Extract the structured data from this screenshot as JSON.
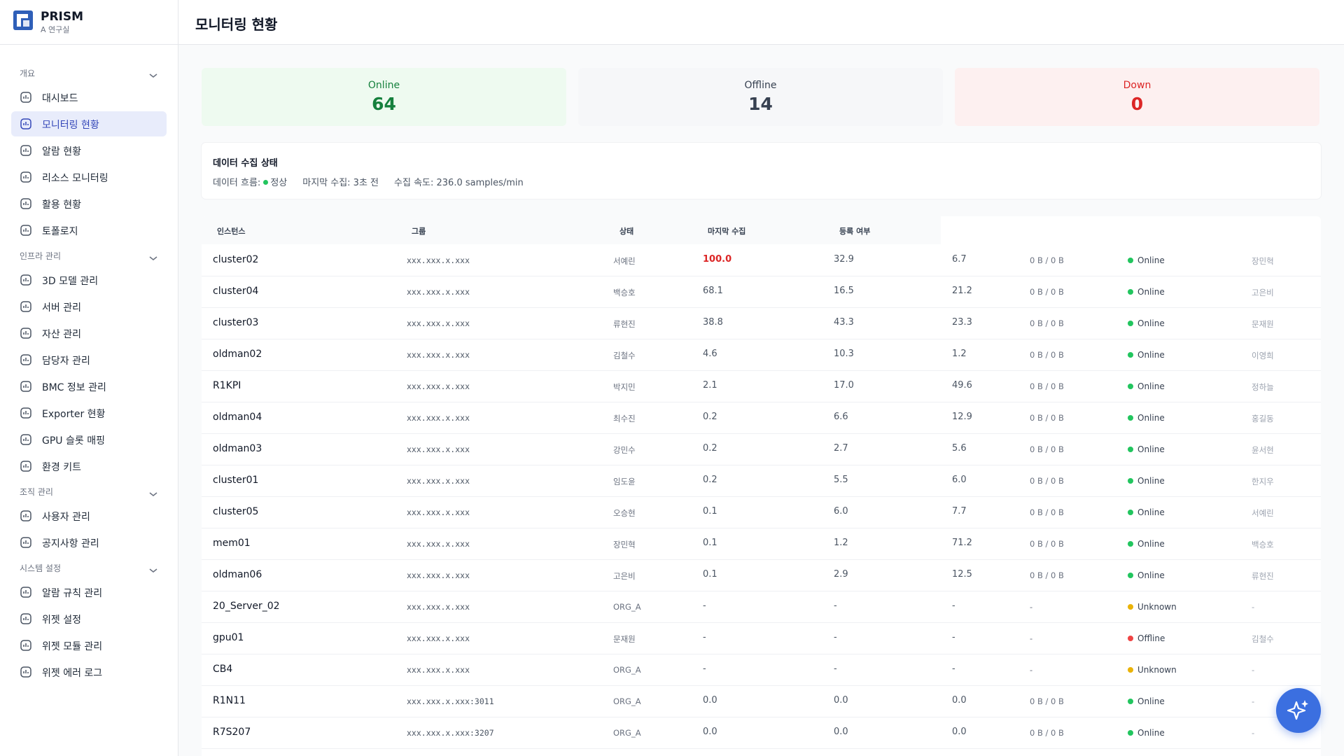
{
  "sidebar": {
    "brand": "PRISM",
    "org": "A 연구실",
    "groups": [
      {
        "label": "개요",
        "items": [
          "대시보드",
          "모니터링 현황",
          "알람 현황",
          "리소스 모니터링",
          "활용 현황",
          "토폴로지"
        ]
      },
      {
        "label": "인프라 관리",
        "items": [
          "3D 모델 관리",
          "서버 관리",
          "자산 관리",
          "담당자 관리",
          "BMC 정보 관리",
          "Exporter 현황",
          "GPU 슬롯 매핑",
          "환경 키트"
        ]
      },
      {
        "label": "조직 관리",
        "items": [
          "사용자 관리",
          "공지사항 관리"
        ]
      },
      {
        "label": "시스템 설정",
        "items": [
          "알람 규칙 관리",
          "위젯 설정",
          "위젯 모듈 관리",
          "위젯 에러 로그"
        ]
      }
    ],
    "active": "모니터링 현황"
  },
  "header": {
    "title": "모니터링 현황"
  },
  "cards": [
    {
      "label": "Online",
      "value": 64,
      "color": "#15803d",
      "background": "#eefaf0"
    },
    {
      "label": "Offline",
      "value": 14,
      "color": "#374151",
      "background": "#f6f7f9"
    },
    {
      "label": "Down",
      "value": 0,
      "color": "#dc2626",
      "background": "#fdf0f0"
    }
  ],
  "collection": {
    "title": "데이터 수집 상태",
    "flow_label": "데이터 흐름:",
    "flow_status": "정상",
    "last": "마지막 수집: 3초 전",
    "rate": "수집 속도: 236.0 samples/min"
  },
  "table": {
    "columns": [
      "인스턴스",
      "그룹",
      "상태",
      "마지막 수집",
      "등록 여부"
    ],
    "alert_color": "#dc2626",
    "rows": [
      {
        "instance": "cluster02",
        "ip": "xxx.xxx.x.xxx",
        "owner": "서예린",
        "cpu": "100.0",
        "mem": "32.9",
        "disk": "6.7",
        "net": "0 B / 0 B",
        "status": "Online",
        "status_color": "#22c55e",
        "manager": "장민혁",
        "alert": true
      },
      {
        "instance": "cluster04",
        "ip": "xxx.xxx.x.xxx",
        "owner": "백승호",
        "cpu": "68.1",
        "mem": "16.5",
        "disk": "21.2",
        "net": "0 B / 0 B",
        "status": "Online",
        "status_color": "#22c55e",
        "manager": "고은비"
      },
      {
        "instance": "cluster03",
        "ip": "xxx.xxx.x.xxx",
        "owner": "류현진",
        "cpu": "38.8",
        "mem": "43.3",
        "disk": "23.3",
        "net": "0 B / 0 B",
        "status": "Online",
        "status_color": "#22c55e",
        "manager": "문재원"
      },
      {
        "instance": "oldman02",
        "ip": "xxx.xxx.x.xxx",
        "owner": "김철수",
        "cpu": "4.6",
        "mem": "10.3",
        "disk": "1.2",
        "net": "0 B / 0 B",
        "status": "Online",
        "status_color": "#22c55e",
        "manager": "이영희"
      },
      {
        "instance": "R1KPI",
        "ip": "xxx.xxx.x.xxx",
        "owner": "박지민",
        "cpu": "2.1",
        "mem": "17.0",
        "disk": "49.6",
        "net": "0 B / 0 B",
        "status": "Online",
        "status_color": "#22c55e",
        "manager": "정하늘"
      },
      {
        "instance": "oldman04",
        "ip": "xxx.xxx.x.xxx",
        "owner": "최수진",
        "cpu": "0.2",
        "mem": "6.6",
        "disk": "12.9",
        "net": "0 B / 0 B",
        "status": "Online",
        "status_color": "#22c55e",
        "manager": "홍길동"
      },
      {
        "instance": "oldman03",
        "ip": "xxx.xxx.x.xxx",
        "owner": "강민수",
        "cpu": "0.2",
        "mem": "2.7",
        "disk": "5.6",
        "net": "0 B / 0 B",
        "status": "Online",
        "status_color": "#22c55e",
        "manager": "윤서현"
      },
      {
        "instance": "cluster01",
        "ip": "xxx.xxx.x.xxx",
        "owner": "임도윤",
        "cpu": "0.2",
        "mem": "5.5",
        "disk": "6.0",
        "net": "0 B / 0 B",
        "status": "Online",
        "status_color": "#22c55e",
        "manager": "한지우"
      },
      {
        "instance": "cluster05",
        "ip": "xxx.xxx.x.xxx",
        "owner": "오승현",
        "cpu": "0.1",
        "mem": "6.0",
        "disk": "7.7",
        "net": "0 B / 0 B",
        "status": "Online",
        "status_color": "#22c55e",
        "manager": "서예린"
      },
      {
        "instance": "mem01",
        "ip": "xxx.xxx.x.xxx",
        "owner": "장민혁",
        "cpu": "0.1",
        "mem": "1.2",
        "disk": "71.2",
        "net": "0 B / 0 B",
        "status": "Online",
        "status_color": "#22c55e",
        "manager": "백승호"
      },
      {
        "instance": "oldman06",
        "ip": "xxx.xxx.x.xxx",
        "owner": "고은비",
        "cpu": "0.1",
        "mem": "2.9",
        "disk": "12.5",
        "net": "0 B / 0 B",
        "status": "Online",
        "status_color": "#22c55e",
        "manager": "류현진"
      },
      {
        "instance": "20_Server_02",
        "ip": "xxx.xxx.x.xxx",
        "owner": "ORG_A",
        "cpu": "-",
        "mem": "-",
        "disk": "-",
        "net": "-",
        "status": "Unknown",
        "status_color": "#eab308",
        "manager": "-"
      },
      {
        "instance": "gpu01",
        "ip": "xxx.xxx.x.xxx",
        "owner": "문재원",
        "cpu": "-",
        "mem": "-",
        "disk": "-",
        "net": "-",
        "status": "Offline",
        "status_color": "#ef4444",
        "manager": "김철수"
      },
      {
        "instance": "CB4",
        "ip": "xxx.xxx.x.xxx",
        "owner": "ORG_A",
        "cpu": "-",
        "mem": "-",
        "disk": "-",
        "net": "-",
        "status": "Unknown",
        "status_color": "#eab308",
        "manager": "-"
      },
      {
        "instance": "R1N11",
        "ip": "xxx.xxx.x.xxx:3011",
        "owner": "ORG_A",
        "cpu": "0.0",
        "mem": "0.0",
        "disk": "0.0",
        "net": "0 B / 0 B",
        "status": "Online",
        "status_color": "#22c55e",
        "manager": "-"
      },
      {
        "instance": "R7S207",
        "ip": "xxx.xxx.x.xxx:3207",
        "owner": "ORG_A",
        "cpu": "0.0",
        "mem": "0.0",
        "disk": "0.0",
        "net": "0 B / 0 B",
        "status": "Online",
        "status_color": "#22c55e",
        "manager": "-"
      }
    ]
  }
}
